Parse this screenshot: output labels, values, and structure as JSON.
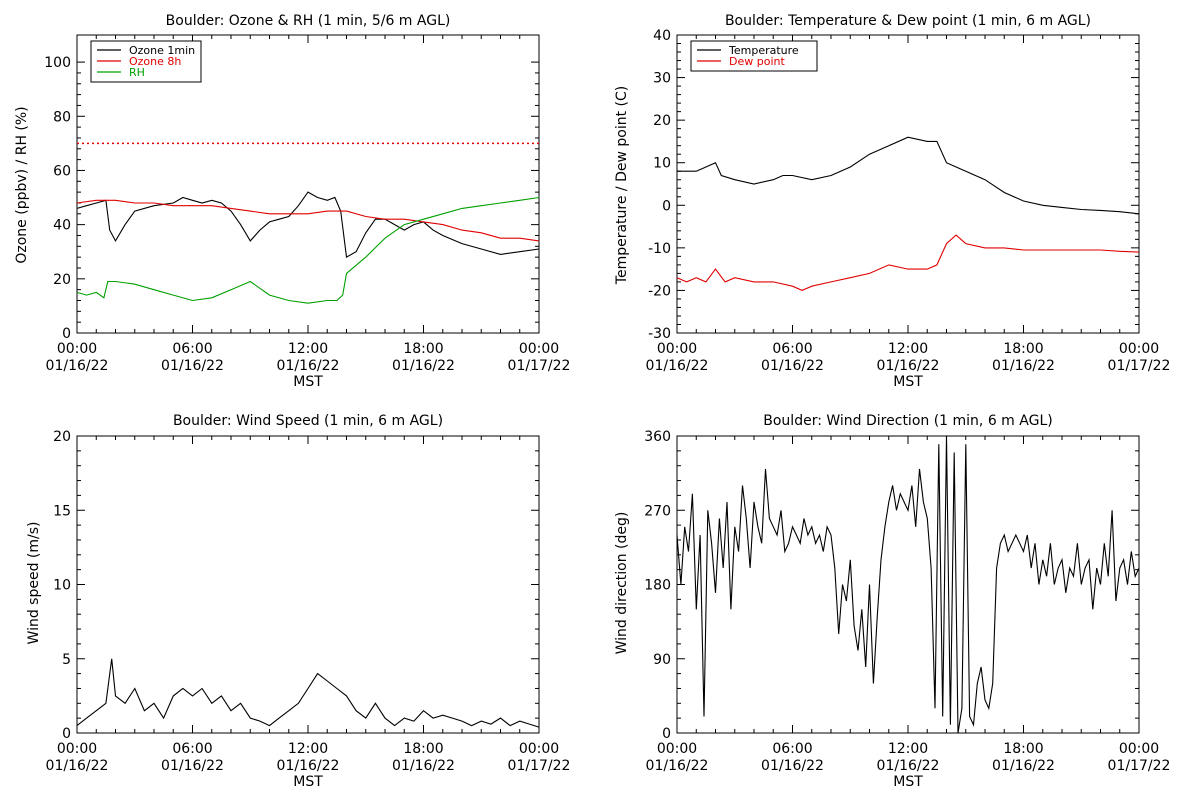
{
  "colors": {
    "black": "#000000",
    "red": "#e00000",
    "green": "#00a000"
  },
  "x_ticks": [
    {
      "hour": 0,
      "time": "00:00",
      "date": "01/16/22"
    },
    {
      "hour": 6,
      "time": "06:00",
      "date": "01/16/22"
    },
    {
      "hour": 12,
      "time": "12:00",
      "date": "01/16/22"
    },
    {
      "hour": 18,
      "time": "18:00",
      "date": "01/16/22"
    },
    {
      "hour": 24,
      "time": "00:00",
      "date": "01/17/22"
    }
  ],
  "x_axis_label": "MST",
  "chart_data": [
    {
      "type": "line",
      "title": "Boulder: Ozone & RH (1 min, 5/6 m AGL)",
      "ylabel": "Ozone (ppbv) / RH (%)",
      "xlabel": "MST",
      "xlim": [
        0,
        24
      ],
      "ylim": [
        0,
        110
      ],
      "yticks": [
        0,
        20,
        40,
        60,
        80,
        100
      ],
      "legend": "top-left",
      "reference_line": {
        "y": 70,
        "color": "#e00000",
        "style": "dotted"
      },
      "series": [
        {
          "name": "Ozone 1min",
          "color": "#000000",
          "x": [
            0,
            0.5,
            1,
            1.5,
            1.7,
            2,
            2.5,
            3,
            4,
            5,
            5.5,
            6,
            6.5,
            7,
            7.5,
            8,
            8.5,
            9,
            9.5,
            10,
            10.5,
            11,
            11.5,
            12,
            12.5,
            13,
            13.4,
            13.7,
            14,
            14.5,
            15,
            15.5,
            16,
            16.5,
            17,
            17.5,
            18,
            18.5,
            19,
            20,
            21,
            22,
            23,
            24
          ],
          "y": [
            46,
            47,
            48,
            49,
            38,
            34,
            40,
            45,
            47,
            48,
            50,
            49,
            48,
            49,
            48,
            45,
            40,
            34,
            38,
            41,
            42,
            43,
            47,
            52,
            50,
            49,
            50,
            45,
            28,
            30,
            37,
            42,
            42,
            40,
            38,
            40,
            41,
            38,
            36,
            33,
            31,
            29,
            30,
            31
          ]
        },
        {
          "name": "Ozone 8h",
          "color": "#e00000",
          "x": [
            0,
            1,
            2,
            3,
            4,
            5,
            6,
            7,
            8,
            9,
            10,
            11,
            12,
            13,
            14,
            15,
            16,
            17,
            18,
            19,
            20,
            21,
            22,
            23,
            24
          ],
          "y": [
            48,
            49,
            49,
            48,
            48,
            47,
            47,
            47,
            46,
            45,
            44,
            44,
            44,
            45,
            45,
            43,
            42,
            42,
            41,
            40,
            38,
            37,
            35,
            35,
            34
          ]
        },
        {
          "name": "RH",
          "color": "#00a000",
          "x": [
            0,
            0.5,
            1,
            1.4,
            1.6,
            2,
            3,
            4,
            5,
            6,
            7,
            8,
            9,
            10,
            11,
            12,
            13,
            13.5,
            13.8,
            14,
            15,
            16,
            17,
            18,
            19,
            20,
            21,
            22,
            23,
            24
          ],
          "y": [
            15,
            14,
            15,
            13,
            19,
            19,
            18,
            16,
            14,
            12,
            13,
            16,
            19,
            14,
            12,
            11,
            12,
            12,
            14,
            22,
            28,
            35,
            40,
            42,
            44,
            46,
            47,
            48,
            49,
            50
          ]
        }
      ]
    },
    {
      "type": "line",
      "title": "Boulder: Temperature & Dew point (1 min, 6 m AGL)",
      "ylabel": "Temperature / Dew point (C)",
      "xlabel": "MST",
      "xlim": [
        0,
        24
      ],
      "ylim": [
        -30,
        40
      ],
      "yticks": [
        -30,
        -20,
        -10,
        0,
        10,
        20,
        30,
        40
      ],
      "legend": "top-left",
      "series": [
        {
          "name": "Temperature",
          "color": "#000000",
          "x": [
            0,
            1,
            1.5,
            2,
            2.3,
            3,
            4,
            5,
            5.5,
            6,
            7,
            8,
            9,
            10,
            11,
            12,
            13,
            13.5,
            14,
            14.5,
            15,
            16,
            17,
            18,
            19,
            20,
            21,
            22,
            23,
            24
          ],
          "y": [
            8,
            8,
            9,
            10,
            7,
            6,
            5,
            6,
            7,
            7,
            6,
            7,
            9,
            12,
            14,
            16,
            15,
            15,
            10,
            9,
            8,
            6,
            3,
            1,
            0,
            -0.5,
            -1,
            -1.2,
            -1.5,
            -2
          ]
        },
        {
          "name": "Dew point",
          "color": "#e00000",
          "x": [
            0,
            0.5,
            1,
            1.5,
            2,
            2.5,
            3,
            4,
            5,
            6,
            6.5,
            7,
            8,
            9,
            10,
            11,
            12,
            13,
            13.5,
            14,
            14.5,
            15,
            16,
            17,
            18,
            19,
            20,
            21,
            22,
            23,
            24
          ],
          "y": [
            -17,
            -18,
            -17,
            -18,
            -15,
            -18,
            -17,
            -18,
            -18,
            -19,
            -20,
            -19,
            -18,
            -17,
            -16,
            -14,
            -15,
            -15,
            -14,
            -9,
            -7,
            -9,
            -10,
            -10,
            -10.5,
            -10.5,
            -10.5,
            -10.5,
            -10.5,
            -10.8,
            -11
          ]
        }
      ]
    },
    {
      "type": "line",
      "title": "Boulder: Wind Speed (1 min, 6 m AGL)",
      "ylabel": "Wind speed (m/s)",
      "xlabel": "MST",
      "xlim": [
        0,
        24
      ],
      "ylim": [
        0,
        20
      ],
      "yticks": [
        0,
        5,
        10,
        15,
        20
      ],
      "series": [
        {
          "name": "",
          "color": "#000000",
          "x": [
            0,
            0.5,
            1,
            1.5,
            1.8,
            2,
            2.5,
            3,
            3.5,
            4,
            4.5,
            5,
            5.5,
            6,
            6.5,
            7,
            7.5,
            8,
            8.5,
            9,
            9.5,
            10,
            10.5,
            11,
            11.5,
            12,
            12.5,
            13,
            13.5,
            14,
            14.5,
            15,
            15.5,
            16,
            16.5,
            17,
            17.5,
            18,
            18.5,
            19,
            19.5,
            20,
            20.5,
            21,
            21.5,
            22,
            22.5,
            23,
            23.5,
            24
          ],
          "y": [
            0.5,
            1,
            1.5,
            2,
            5,
            2.5,
            2,
            3,
            1.5,
            2,
            1,
            2.5,
            3,
            2.5,
            3,
            2,
            2.5,
            1.5,
            2,
            1,
            0.8,
            0.5,
            1,
            1.5,
            2,
            3,
            4,
            3.5,
            3,
            2.5,
            1.5,
            1,
            2,
            1,
            0.5,
            1,
            0.8,
            1.5,
            1,
            1.2,
            1,
            0.8,
            0.5,
            0.8,
            0.6,
            1,
            0.5,
            0.8,
            0.6,
            0.4
          ]
        }
      ]
    },
    {
      "type": "line",
      "title": "Boulder: Wind Direction (1 min, 6 m AGL)",
      "ylabel": "Wind direction (deg)",
      "xlabel": "MST",
      "xlim": [
        0,
        24
      ],
      "ylim": [
        0,
        360
      ],
      "yticks": [
        0,
        90,
        180,
        270,
        360
      ],
      "series": [
        {
          "name": "",
          "color": "#000000",
          "x": [
            0,
            0.2,
            0.4,
            0.6,
            0.8,
            1,
            1.2,
            1.4,
            1.6,
            1.8,
            2,
            2.2,
            2.4,
            2.6,
            2.8,
            3,
            3.2,
            3.4,
            3.6,
            3.8,
            4,
            4.2,
            4.4,
            4.6,
            4.8,
            5,
            5.2,
            5.4,
            5.6,
            5.8,
            6,
            6.2,
            6.4,
            6.6,
            6.8,
            7,
            7.2,
            7.4,
            7.6,
            7.8,
            8,
            8.2,
            8.4,
            8.6,
            8.8,
            9,
            9.2,
            9.4,
            9.6,
            9.8,
            10,
            10.2,
            10.4,
            10.6,
            10.8,
            11,
            11.2,
            11.4,
            11.6,
            11.8,
            12,
            12.2,
            12.4,
            12.6,
            12.8,
            13,
            13.2,
            13.4,
            13.6,
            13.8,
            14,
            14.2,
            14.4,
            14.6,
            14.8,
            15,
            15.2,
            15.4,
            15.6,
            15.8,
            16,
            16.2,
            16.4,
            16.6,
            16.8,
            17,
            17.2,
            17.4,
            17.6,
            17.8,
            18,
            18.2,
            18.4,
            18.6,
            18.8,
            19,
            19.2,
            19.4,
            19.6,
            19.8,
            20,
            20.2,
            20.4,
            20.6,
            20.8,
            21,
            21.2,
            21.4,
            21.6,
            21.8,
            22,
            22.2,
            22.4,
            22.6,
            22.8,
            23,
            23.2,
            23.4,
            23.6,
            23.8,
            24
          ],
          "y": [
            240,
            180,
            250,
            220,
            290,
            150,
            240,
            20,
            270,
            230,
            170,
            260,
            200,
            280,
            150,
            250,
            220,
            300,
            260,
            200,
            280,
            250,
            230,
            320,
            260,
            250,
            240,
            270,
            220,
            230,
            250,
            240,
            230,
            260,
            240,
            250,
            230,
            240,
            220,
            250,
            240,
            200,
            120,
            180,
            160,
            210,
            130,
            100,
            150,
            80,
            180,
            60,
            140,
            210,
            250,
            280,
            300,
            270,
            290,
            280,
            270,
            300,
            250,
            320,
            280,
            260,
            200,
            30,
            350,
            20,
            360,
            10,
            340,
            0,
            30,
            350,
            20,
            10,
            60,
            80,
            40,
            30,
            60,
            200,
            230,
            240,
            220,
            230,
            240,
            230,
            220,
            240,
            200,
            230,
            180,
            210,
            190,
            230,
            180,
            200,
            210,
            170,
            200,
            190,
            230,
            180,
            200,
            210,
            150,
            200,
            180,
            230,
            190,
            270,
            160,
            200,
            210,
            180,
            220,
            190,
            200
          ]
        }
      ]
    }
  ]
}
